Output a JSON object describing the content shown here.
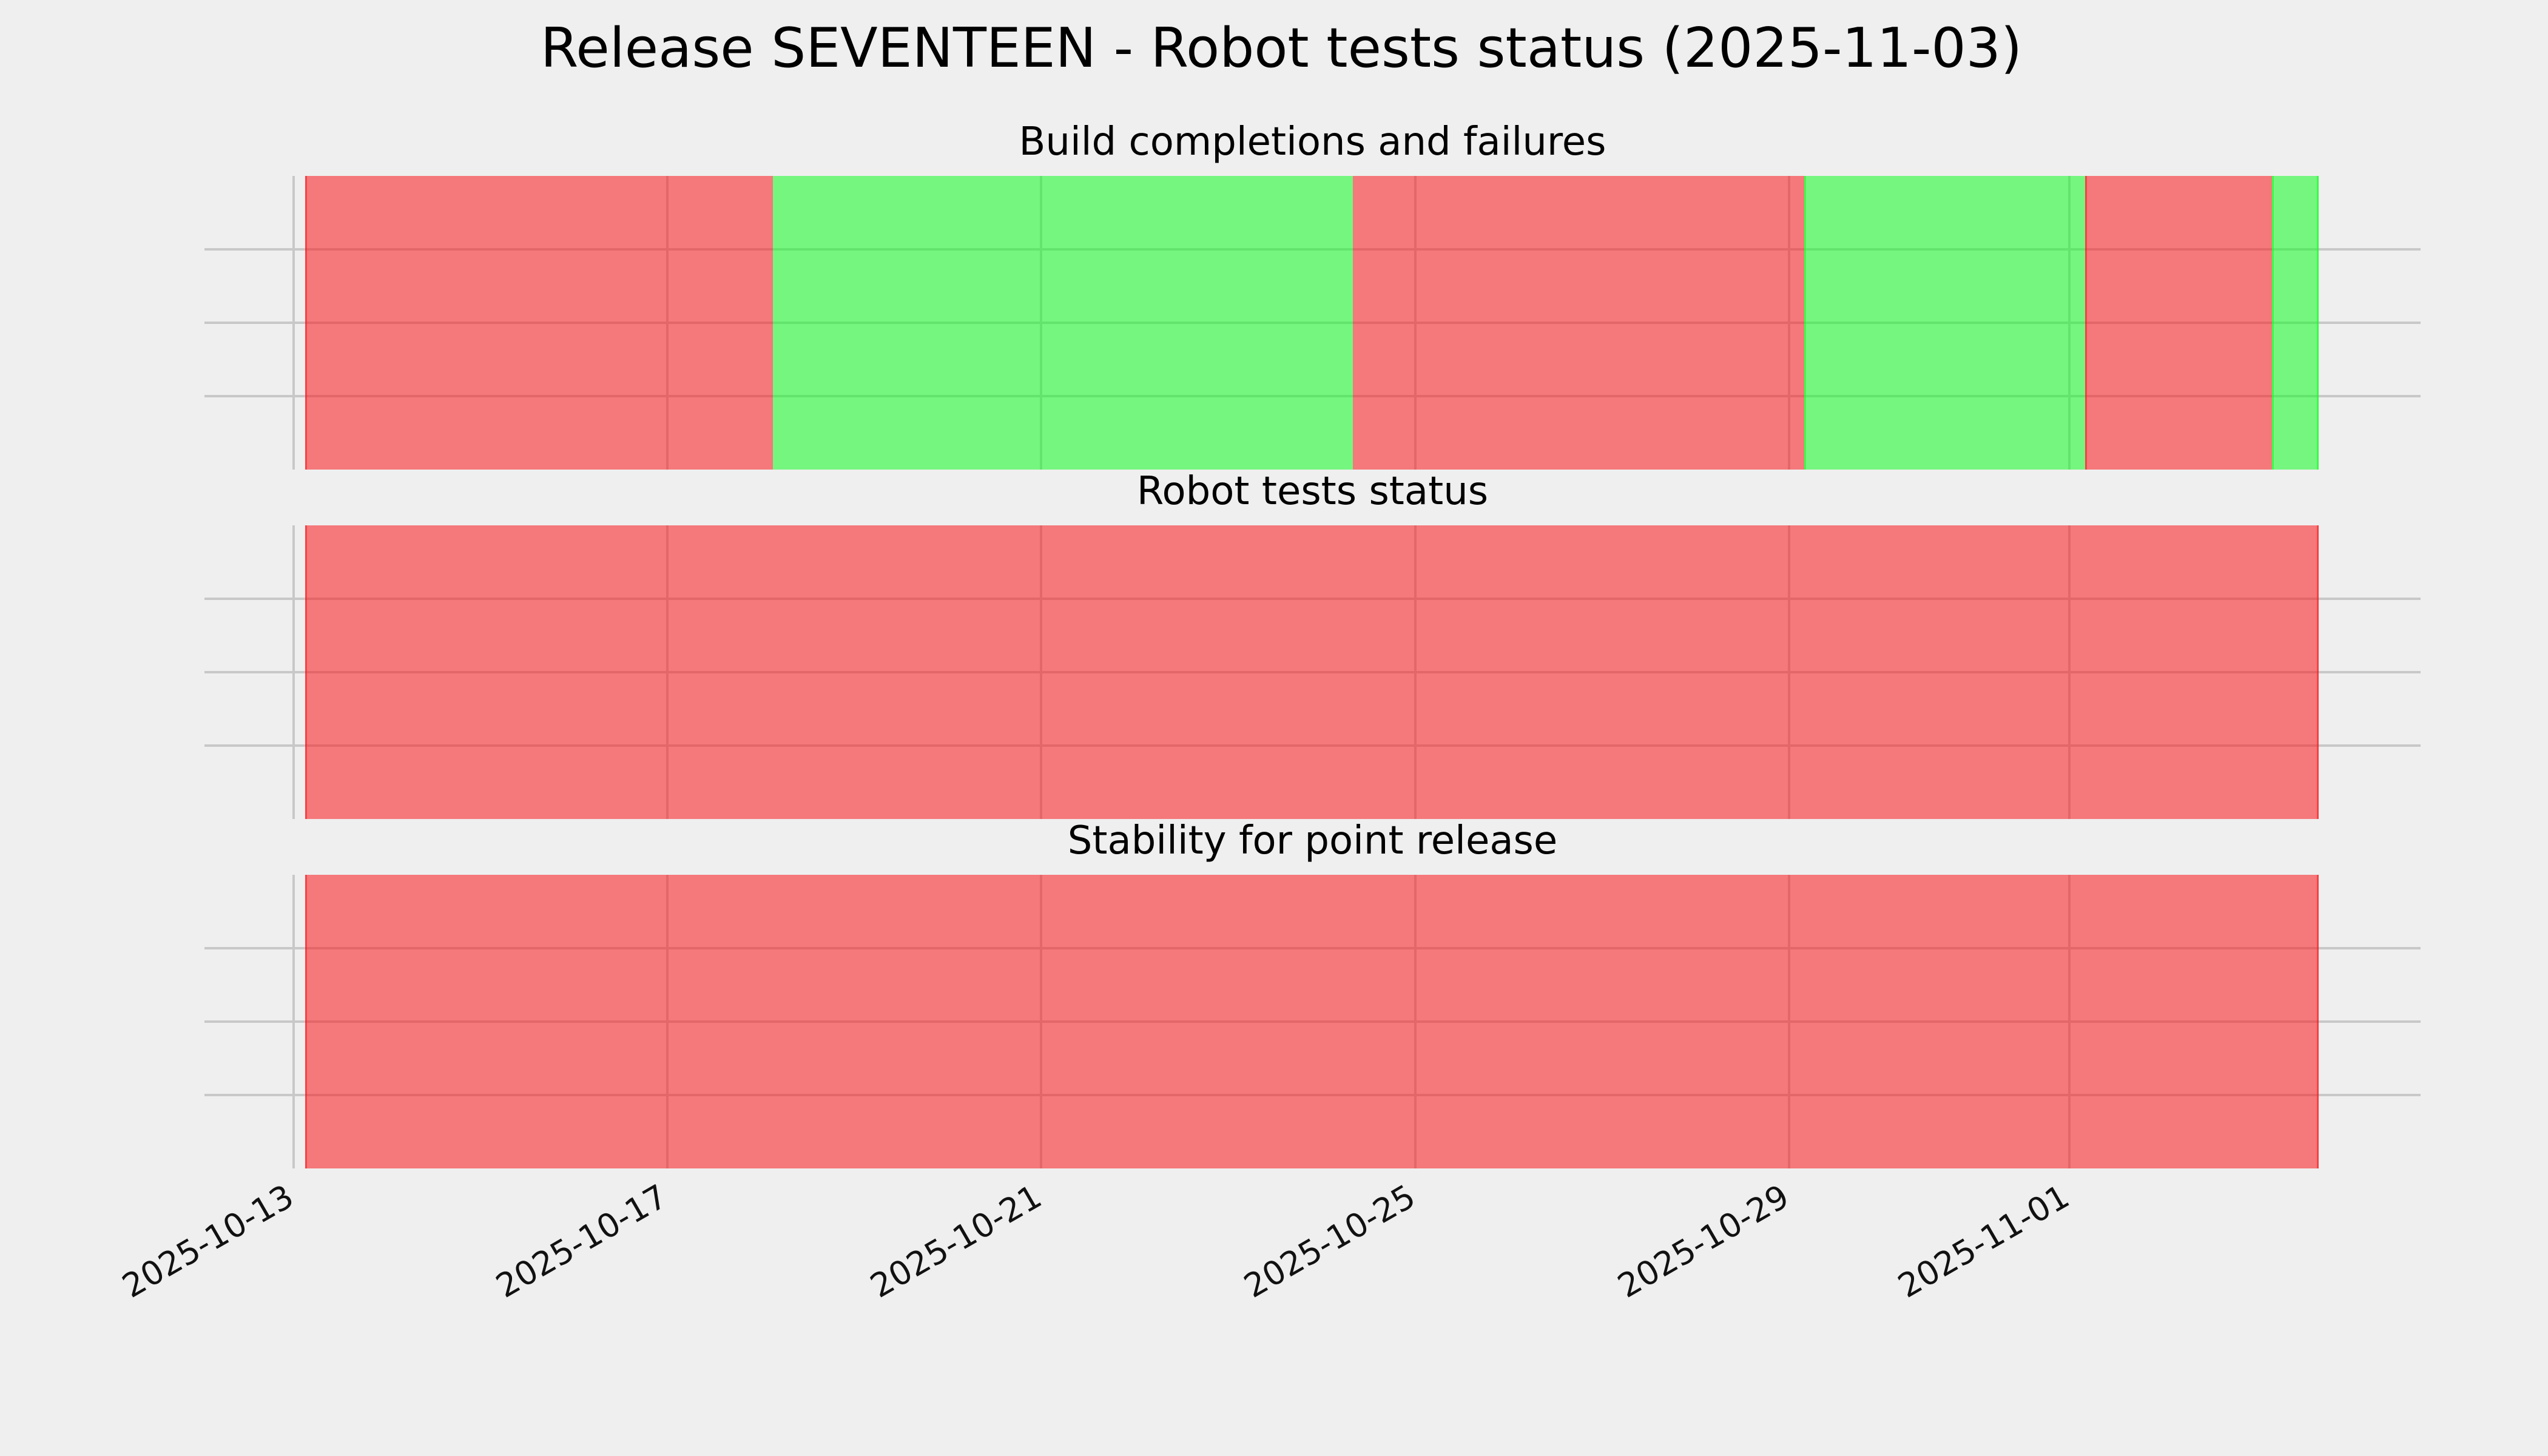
{
  "figure": {
    "title": "Release SEVENTEEN - Robot tests status (2025-11-03)",
    "background_color": "#efefef",
    "grid_color": "#c8c8c8"
  },
  "status_colors": {
    "fail_base": "#fa151a",
    "pass_base": "#11fc23",
    "alpha": 0.55,
    "fail_rendered": "#f57577",
    "pass_rendered": "#73f57e"
  },
  "x_axis": {
    "tick_labels": [
      "2025-10-13",
      "2025-10-17",
      "2025-10-21",
      "2025-10-25",
      "2025-10-29",
      "2025-11-01"
    ],
    "tick_dates": [
      "2025-10-13T00:00",
      "2025-10-17T00:00",
      "2025-10-21T00:00",
      "2025-10-25T00:00",
      "2025-10-29T00:00",
      "2025-11-01T00:00"
    ],
    "rotation_deg": 30
  },
  "chart_data": {
    "type": "timeline-status-bars",
    "title": "Release SEVENTEEN - Robot tests status (2025-11-03)",
    "x_range": [
      "2025-10-12T02:00",
      "2025-11-04T17:00"
    ],
    "data_start": "2025-10-13T03:00",
    "data_end": "2025-11-03T16:00",
    "grid": "on",
    "legend": "none",
    "charts": [
      {
        "title": "Build completions and failures",
        "segments": [
          {
            "start": "2025-10-13T03:00",
            "end": "2025-10-18T03:00",
            "status": "fail",
            "start_edge": true
          },
          {
            "start": "2025-10-18T03:00",
            "end": "2025-10-24T08:00",
            "status": "pass",
            "start_edge": false
          },
          {
            "start": "2025-10-24T08:00",
            "end": "2025-10-29T04:00",
            "status": "fail",
            "start_edge": false
          },
          {
            "start": "2025-10-29T04:00",
            "end": "2025-11-01T04:00",
            "status": "pass",
            "start_edge": true
          },
          {
            "start": "2025-11-01T04:00",
            "end": "2025-11-03T04:00",
            "status": "fail",
            "start_edge": true
          },
          {
            "start": "2025-11-03T04:00",
            "end": "2025-11-03T16:00",
            "status": "pass",
            "start_edge": true
          }
        ],
        "end_edge": true
      },
      {
        "title": "Robot tests status",
        "segments": [
          {
            "start": "2025-10-13T03:00",
            "end": "2025-11-03T16:00",
            "status": "fail",
            "start_edge": true
          }
        ],
        "end_edge": true
      },
      {
        "title": "Stability for point release",
        "segments": [
          {
            "start": "2025-10-13T03:00",
            "end": "2025-11-03T16:00",
            "status": "fail",
            "start_edge": true
          }
        ],
        "end_edge": true
      }
    ]
  }
}
